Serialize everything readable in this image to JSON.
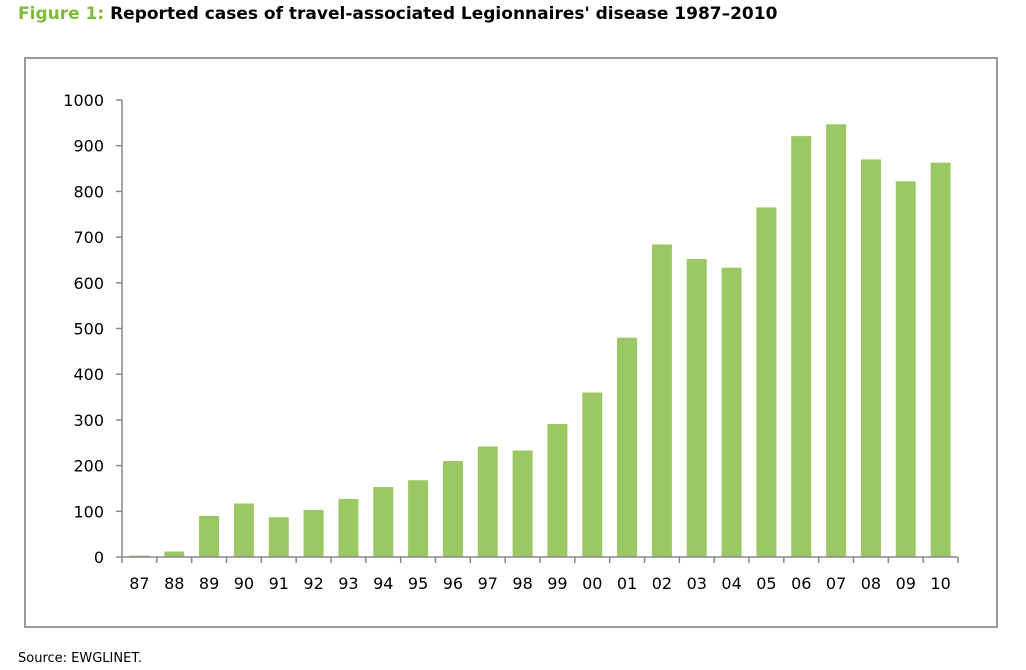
{
  "figure": {
    "label": "Figure 1:",
    "title": "Reported cases of travel-associated Legionnaires' disease 1987–2010"
  },
  "source": "Source: EWGLINET.",
  "chart_data": {
    "type": "bar",
    "categories": [
      "87",
      "88",
      "89",
      "90",
      "91",
      "92",
      "93",
      "94",
      "95",
      "96",
      "97",
      "98",
      "99",
      "00",
      "01",
      "02",
      "03",
      "04",
      "05",
      "06",
      "07",
      "08",
      "09",
      "10"
    ],
    "values": [
      3,
      12,
      90,
      117,
      87,
      103,
      127,
      153,
      168,
      210,
      242,
      233,
      291,
      360,
      480,
      684,
      652,
      633,
      765,
      921,
      947,
      870,
      822,
      863
    ],
    "ylim": [
      0,
      1000
    ],
    "yticks": [
      0,
      100,
      200,
      300,
      400,
      500,
      600,
      700,
      800,
      900,
      1000
    ],
    "grid": false,
    "legend": "none",
    "colors": {
      "bar": "#9bc765",
      "axis": "#888888"
    }
  }
}
